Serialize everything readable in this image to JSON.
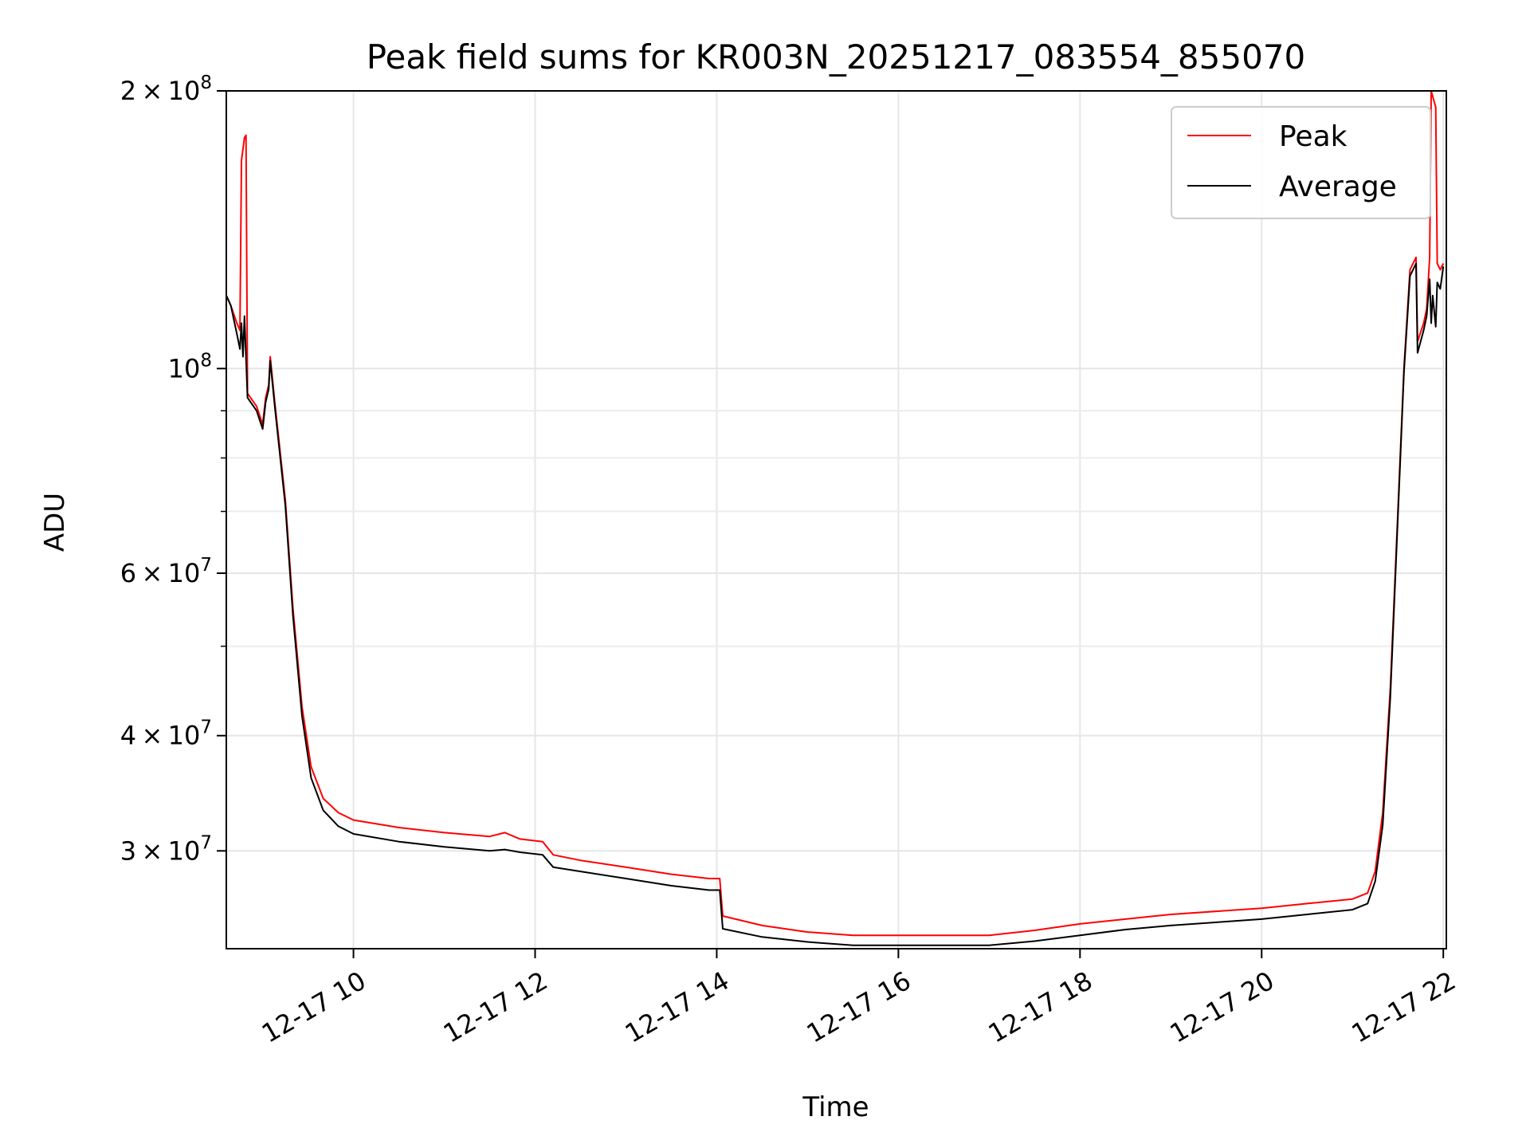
{
  "chart_data": {
    "type": "line",
    "title": "Peak field sums for KR003N_20251217_083554_855070",
    "xlabel": "Time",
    "ylabel": "ADU",
    "yscale": "log",
    "xlim": [
      "2025-12-17 08:36",
      "2025-12-17 22:02"
    ],
    "ylim": [
      23500000,
      200000000
    ],
    "grid": true,
    "legend_position": "top-right",
    "x_ticks": [
      {
        "x": "2025-12-17 10:00",
        "label": "12-17 10"
      },
      {
        "x": "2025-12-17 12:00",
        "label": "12-17 12"
      },
      {
        "x": "2025-12-17 14:00",
        "label": "12-17 14"
      },
      {
        "x": "2025-12-17 16:00",
        "label": "12-17 16"
      },
      {
        "x": "2025-12-17 18:00",
        "label": "12-17 18"
      },
      {
        "x": "2025-12-17 20:00",
        "label": "12-17 20"
      },
      {
        "x": "2025-12-17 22:00",
        "label": "12-17 22"
      }
    ],
    "y_major_ticks": [
      {
        "y": 30000000,
        "mant": "3",
        "exp": "7"
      },
      {
        "y": 40000000,
        "mant": "4",
        "exp": "7"
      },
      {
        "y": 60000000,
        "mant": "6",
        "exp": "7"
      },
      {
        "y": 100000000,
        "mant": "",
        "exp": "8"
      },
      {
        "y": 200000000,
        "mant": "2",
        "exp": "8"
      }
    ],
    "y_minor_ticks": [
      50000000,
      70000000,
      80000000,
      90000000
    ],
    "series": [
      {
        "name": "Peak",
        "color": "#ff0000",
        "points": [
          [
            "2025-12-17 08:36",
            120000000
          ],
          [
            "2025-12-17 08:39",
            117000000
          ],
          [
            "2025-12-17 08:43",
            112000000
          ],
          [
            "2025-12-17 08:45",
            110000000
          ],
          [
            "2025-12-17 08:46",
            168000000
          ],
          [
            "2025-12-17 08:48",
            178000000
          ],
          [
            "2025-12-17 08:49",
            179000000
          ],
          [
            "2025-12-17 08:50",
            94000000
          ],
          [
            "2025-12-17 08:56",
            91000000
          ],
          [
            "2025-12-17 09:00",
            87000000
          ],
          [
            "2025-12-17 09:02",
            93000000
          ],
          [
            "2025-12-17 09:04",
            96000000
          ],
          [
            "2025-12-17 09:05",
            103000000
          ],
          [
            "2025-12-17 09:08",
            92000000
          ],
          [
            "2025-12-17 09:15",
            72000000
          ],
          [
            "2025-12-17 09:20",
            55000000
          ],
          [
            "2025-12-17 09:26",
            43000000
          ],
          [
            "2025-12-17 09:32",
            37000000
          ],
          [
            "2025-12-17 09:40",
            34200000
          ],
          [
            "2025-12-17 09:50",
            33000000
          ],
          [
            "2025-12-17 10:00",
            32400000
          ],
          [
            "2025-12-17 10:30",
            31800000
          ],
          [
            "2025-12-17 11:00",
            31400000
          ],
          [
            "2025-12-17 11:30",
            31100000
          ],
          [
            "2025-12-17 11:40",
            31400000
          ],
          [
            "2025-12-17 11:50",
            30900000
          ],
          [
            "2025-12-17 12:05",
            30700000
          ],
          [
            "2025-12-17 12:12",
            29700000
          ],
          [
            "2025-12-17 12:30",
            29300000
          ],
          [
            "2025-12-17 13:00",
            28800000
          ],
          [
            "2025-12-17 13:30",
            28300000
          ],
          [
            "2025-12-17 13:55",
            28000000
          ],
          [
            "2025-12-17 14:02",
            28000000
          ],
          [
            "2025-12-17 14:04",
            25500000
          ],
          [
            "2025-12-17 14:30",
            24900000
          ],
          [
            "2025-12-17 15:00",
            24500000
          ],
          [
            "2025-12-17 15:30",
            24300000
          ],
          [
            "2025-12-17 16:00",
            24300000
          ],
          [
            "2025-12-17 16:30",
            24300000
          ],
          [
            "2025-12-17 17:00",
            24300000
          ],
          [
            "2025-12-17 17:30",
            24600000
          ],
          [
            "2025-12-17 18:00",
            25000000
          ],
          [
            "2025-12-17 18:30",
            25300000
          ],
          [
            "2025-12-17 19:00",
            25600000
          ],
          [
            "2025-12-17 19:30",
            25800000
          ],
          [
            "2025-12-17 20:00",
            26000000
          ],
          [
            "2025-12-17 20:30",
            26300000
          ],
          [
            "2025-12-17 21:00",
            26600000
          ],
          [
            "2025-12-17 21:10",
            27000000
          ],
          [
            "2025-12-17 21:15",
            28500000
          ],
          [
            "2025-12-17 21:20",
            33000000
          ],
          [
            "2025-12-17 21:25",
            45000000
          ],
          [
            "2025-12-17 21:30",
            70000000
          ],
          [
            "2025-12-17 21:34",
            100000000
          ],
          [
            "2025-12-17 21:38",
            128000000
          ],
          [
            "2025-12-17 21:42",
            132000000
          ],
          [
            "2025-12-17 21:43",
            107000000
          ],
          [
            "2025-12-17 21:47",
            112000000
          ],
          [
            "2025-12-17 21:49",
            116000000
          ],
          [
            "2025-12-17 21:51",
            132000000
          ],
          [
            "2025-12-17 21:52",
            200000000
          ],
          [
            "2025-12-17 21:55",
            192000000
          ],
          [
            "2025-12-17 21:56",
            130000000
          ],
          [
            "2025-12-17 21:58",
            128000000
          ],
          [
            "2025-12-17 22:00",
            130000000
          ]
        ]
      },
      {
        "name": "Average",
        "color": "#000000",
        "points": [
          [
            "2025-12-17 08:36",
            120000000
          ],
          [
            "2025-12-17 08:39",
            117000000
          ],
          [
            "2025-12-17 08:43",
            109000000
          ],
          [
            "2025-12-17 08:45",
            105000000
          ],
          [
            "2025-12-17 08:46",
            112000000
          ],
          [
            "2025-12-17 08:47",
            103000000
          ],
          [
            "2025-12-17 08:48",
            114000000
          ],
          [
            "2025-12-17 08:50",
            93000000
          ],
          [
            "2025-12-17 08:56",
            90000000
          ],
          [
            "2025-12-17 09:00",
            86000000
          ],
          [
            "2025-12-17 09:02",
            92000000
          ],
          [
            "2025-12-17 09:04",
            95000000
          ],
          [
            "2025-12-17 09:05",
            102000000
          ],
          [
            "2025-12-17 09:08",
            91000000
          ],
          [
            "2025-12-17 09:15",
            71000000
          ],
          [
            "2025-12-17 09:20",
            54000000
          ],
          [
            "2025-12-17 09:26",
            42000000
          ],
          [
            "2025-12-17 09:32",
            36000000
          ],
          [
            "2025-12-17 09:40",
            33200000
          ],
          [
            "2025-12-17 09:50",
            31900000
          ],
          [
            "2025-12-17 10:00",
            31300000
          ],
          [
            "2025-12-17 10:30",
            30700000
          ],
          [
            "2025-12-17 11:00",
            30300000
          ],
          [
            "2025-12-17 11:30",
            30000000
          ],
          [
            "2025-12-17 11:40",
            30100000
          ],
          [
            "2025-12-17 11:50",
            29900000
          ],
          [
            "2025-12-17 12:05",
            29700000
          ],
          [
            "2025-12-17 12:12",
            28800000
          ],
          [
            "2025-12-17 12:30",
            28500000
          ],
          [
            "2025-12-17 13:00",
            28000000
          ],
          [
            "2025-12-17 13:30",
            27500000
          ],
          [
            "2025-12-17 13:55",
            27200000
          ],
          [
            "2025-12-17 14:02",
            27200000
          ],
          [
            "2025-12-17 14:04",
            24700000
          ],
          [
            "2025-12-17 14:30",
            24200000
          ],
          [
            "2025-12-17 15:00",
            23900000
          ],
          [
            "2025-12-17 15:30",
            23700000
          ],
          [
            "2025-12-17 16:00",
            23700000
          ],
          [
            "2025-12-17 16:30",
            23700000
          ],
          [
            "2025-12-17 17:00",
            23700000
          ],
          [
            "2025-12-17 17:30",
            23950000
          ],
          [
            "2025-12-17 18:00",
            24300000
          ],
          [
            "2025-12-17 18:30",
            24650000
          ],
          [
            "2025-12-17 19:00",
            24900000
          ],
          [
            "2025-12-17 19:30",
            25100000
          ],
          [
            "2025-12-17 20:00",
            25300000
          ],
          [
            "2025-12-17 20:30",
            25600000
          ],
          [
            "2025-12-17 21:00",
            25900000
          ],
          [
            "2025-12-17 21:10",
            26300000
          ],
          [
            "2025-12-17 21:15",
            27800000
          ],
          [
            "2025-12-17 21:20",
            32000000
          ],
          [
            "2025-12-17 21:25",
            44000000
          ],
          [
            "2025-12-17 21:30",
            69000000
          ],
          [
            "2025-12-17 21:34",
            99000000
          ],
          [
            "2025-12-17 21:38",
            126000000
          ],
          [
            "2025-12-17 21:42",
            130000000
          ],
          [
            "2025-12-17 21:43",
            104000000
          ],
          [
            "2025-12-17 21:47",
            110000000
          ],
          [
            "2025-12-17 21:49",
            114000000
          ],
          [
            "2025-12-17 21:51",
            125000000
          ],
          [
            "2025-12-17 21:52",
            112000000
          ],
          [
            "2025-12-17 21:53",
            120000000
          ],
          [
            "2025-12-17 21:55",
            111000000
          ],
          [
            "2025-12-17 21:56",
            124000000
          ],
          [
            "2025-12-17 21:58",
            122000000
          ],
          [
            "2025-12-17 22:00",
            129000000
          ]
        ]
      }
    ]
  }
}
